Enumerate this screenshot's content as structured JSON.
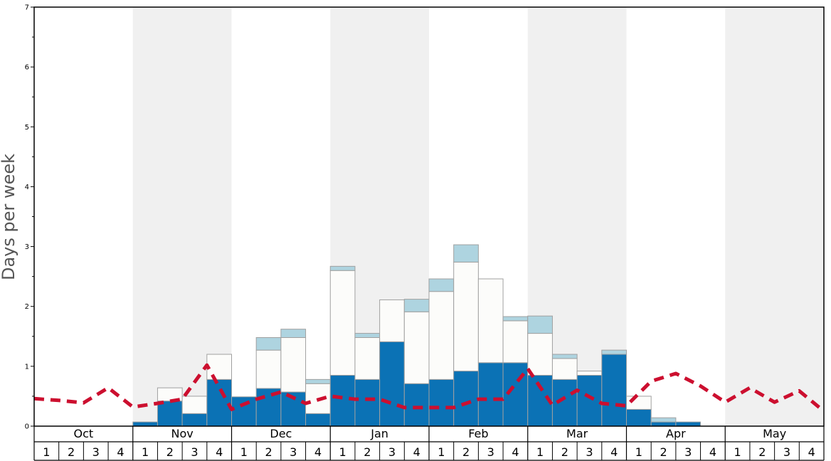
{
  "chart_data": {
    "type": "bar",
    "title": "",
    "ylabel": "Days per week",
    "xlabel": "",
    "ylim": [
      0,
      7
    ],
    "y_major_ticks": [
      0,
      1,
      2,
      3,
      4,
      5,
      6,
      7
    ],
    "y_major_tick_labels": [
      "0",
      "1",
      "2",
      "3",
      "4",
      "5",
      "6",
      "7"
    ],
    "y_minor_ticks": [
      0.5,
      1.5,
      2.5,
      3.5,
      4.5,
      5.5,
      6.5
    ],
    "months": [
      "Oct",
      "Nov",
      "Dec",
      "Jan",
      "Feb",
      "Mar",
      "Apr",
      "May"
    ],
    "weeks_per_month": 4,
    "week_labels": [
      "1",
      "2",
      "3",
      "4"
    ],
    "colors": {
      "bottom": "#0b72b5",
      "middle": "#fcfcfa",
      "top": "#aed4e0",
      "line": "#cc0f2f",
      "shade": "#f0f0f0",
      "axis": "#000000",
      "bar_outline": "#a0a0a0"
    },
    "series": [
      {
        "name": "bottom",
        "values": [
          0,
          0,
          0,
          0,
          0.07,
          0.42,
          0.21,
          0.78,
          0.49,
          0.63,
          0.57,
          0.21,
          0.85,
          0.78,
          1.41,
          0.71,
          0.78,
          0.92,
          1.06,
          1.06,
          0.85,
          0.78,
          0.85,
          1.2,
          0.28,
          0.07,
          0.07,
          0,
          0,
          0,
          0,
          0
        ]
      },
      {
        "name": "middle",
        "values": [
          0,
          0,
          0,
          0,
          0,
          0.22,
          0.29,
          0.42,
          0,
          0.64,
          0.91,
          0.5,
          1.75,
          0.7,
          0.7,
          1.2,
          1.47,
          1.82,
          1.4,
          0.7,
          0.7,
          0.35,
          0.07,
          0,
          0.22,
          0,
          0,
          0,
          0,
          0,
          0,
          0
        ]
      },
      {
        "name": "top",
        "values": [
          0,
          0,
          0,
          0,
          0,
          0,
          0,
          0,
          0,
          0.21,
          0.14,
          0.07,
          0.07,
          0.07,
          0,
          0.21,
          0.21,
          0.29,
          0,
          0.07,
          0.29,
          0.07,
          0,
          0.07,
          0,
          0.07,
          0,
          0,
          0,
          0,
          0,
          0
        ]
      },
      {
        "name": "line",
        "style": "dashed",
        "values": [
          0.46,
          0.43,
          0.39,
          0.64,
          0.32,
          0.38,
          0.45,
          1.02,
          0.28,
          0.45,
          0.57,
          0.38,
          0.5,
          0.45,
          0.45,
          0.31,
          0.31,
          0.31,
          0.45,
          0.45,
          0.96,
          0.35,
          0.6,
          0.38,
          0.34,
          0.75,
          0.88,
          0.67,
          0.4,
          0.64,
          0.4,
          0.59,
          0.25
        ]
      }
    ]
  }
}
